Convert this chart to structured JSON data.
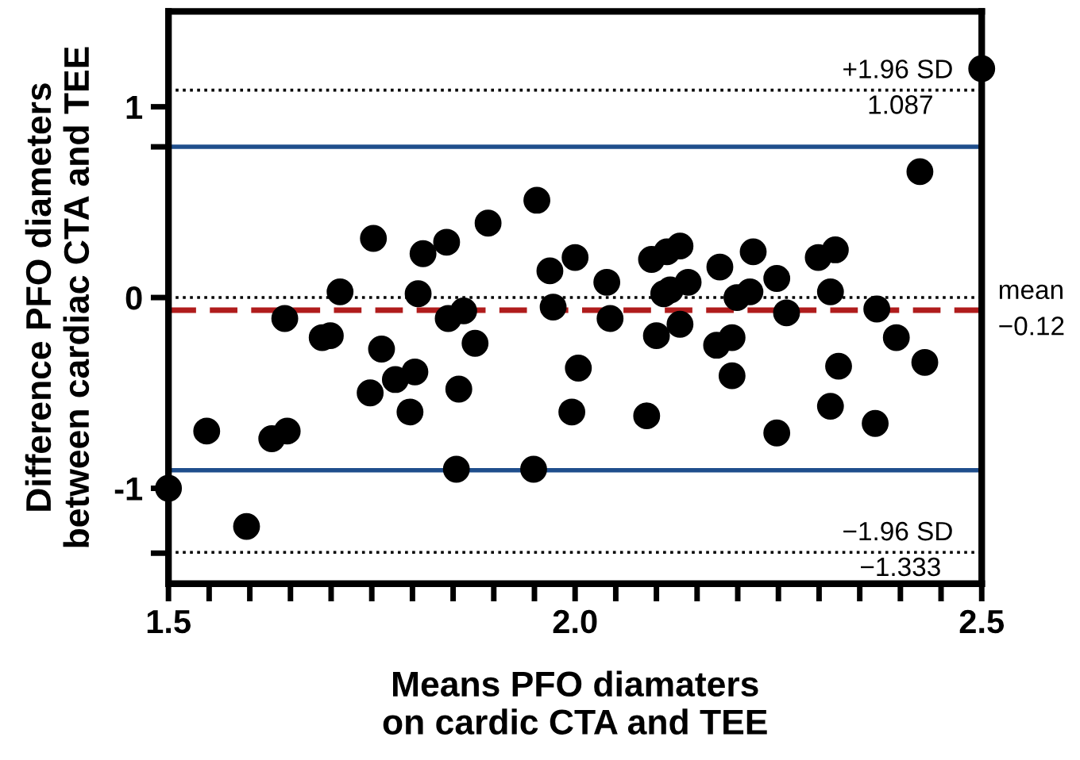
{
  "chart_data": {
    "type": "scatter",
    "xlabel": "Means PFO diamaters\non cardic CTA and TEE",
    "ylabel": "Difference PFO diameters\nbetween cardiac CTA and TEE",
    "x": [
      1.5,
      1.547,
      1.596,
      1.627,
      1.646,
      1.643,
      1.689,
      1.699,
      1.711,
      1.752,
      1.762,
      1.748,
      1.779,
      1.803,
      1.797,
      1.813,
      1.807,
      1.842,
      1.844,
      1.863,
      1.877,
      1.857,
      1.854,
      1.893,
      1.953,
      1.949,
      1.969,
      1.973,
      2.0,
      2.004,
      1.996,
      2.039,
      2.043,
      2.094,
      2.113,
      2.129,
      2.139,
      2.109,
      2.117,
      2.1,
      2.129,
      2.088,
      2.178,
      2.219,
      2.199,
      2.215,
      2.248,
      2.174,
      2.193,
      2.193,
      2.248,
      2.26,
      2.299,
      2.32,
      2.314,
      2.324,
      2.314,
      2.371,
      2.395,
      2.369,
      2.43,
      2.424,
      2.5
    ],
    "values": [
      -1.0,
      -0.7,
      -1.2,
      -0.74,
      -0.7,
      -0.11,
      -0.21,
      -0.2,
      0.03,
      0.31,
      -0.27,
      -0.5,
      -0.43,
      -0.39,
      -0.6,
      0.23,
      0.02,
      0.29,
      -0.11,
      -0.07,
      -0.24,
      -0.48,
      -0.9,
      0.39,
      0.51,
      -0.9,
      0.14,
      -0.05,
      0.21,
      -0.37,
      -0.6,
      0.08,
      -0.11,
      0.2,
      0.24,
      0.27,
      0.08,
      0.02,
      0.04,
      -0.2,
      -0.14,
      -0.62,
      0.16,
      0.24,
      0.0,
      0.03,
      0.1,
      -0.25,
      -0.21,
      -0.41,
      -0.71,
      -0.08,
      0.21,
      0.25,
      0.03,
      -0.36,
      -0.57,
      -0.06,
      -0.21,
      -0.66,
      -0.34,
      0.66,
      1.2
    ],
    "color": "#000000",
    "marker": "circle",
    "xlim": [
      1.5,
      2.5
    ],
    "ylim": [
      -1.5,
      1.5
    ],
    "xticks": [
      1.5,
      {
        "value": 1.55,
        "label": null
      },
      {
        "value": 1.6,
        "label": null
      },
      {
        "value": 1.65,
        "label": null
      },
      {
        "value": 1.7,
        "label": null
      },
      {
        "value": 1.75,
        "label": null
      },
      {
        "value": 1.8,
        "label": null
      },
      {
        "value": 1.85,
        "label": null
      },
      {
        "value": 1.9,
        "label": null
      },
      {
        "value": 1.95,
        "label": null
      },
      {
        "value": 2.0,
        "label": "2.0"
      },
      {
        "value": 2.05,
        "label": null
      },
      {
        "value": 2.1,
        "label": null
      },
      {
        "value": 2.15,
        "label": null
      },
      {
        "value": 2.2,
        "label": null
      },
      {
        "value": 2.25,
        "label": null
      },
      {
        "value": 2.3,
        "label": null
      },
      {
        "value": 2.35,
        "label": null
      },
      {
        "value": 2.4,
        "label": null
      },
      {
        "value": 2.45,
        "label": null
      },
      2.5
    ],
    "yticks": [
      -1,
      {
        "value": -1.34,
        "label": null
      },
      0,
      {
        "value": 0.79,
        "label": null
      },
      1
    ],
    "ref_lines": [
      {
        "axis": "y",
        "value": 1.087,
        "label": "+1.96 SD\n1.087",
        "color": "#000000",
        "line_style": "dotted"
      },
      {
        "axis": "y",
        "value": 0.79,
        "label": null,
        "color": "#1f4e8c",
        "line_style": "solid"
      },
      {
        "axis": "y",
        "value": 0,
        "label": null,
        "color": "#000000",
        "line_style": "dotted"
      },
      {
        "axis": "y",
        "value": -0.066,
        "label": "mean\n−0.12",
        "color": "#b01c1c",
        "line_style": "dashed"
      },
      {
        "axis": "y",
        "value": -0.905,
        "label": null,
        "color": "#1f4e8c",
        "line_style": "solid"
      },
      {
        "axis": "y",
        "value": -1.336,
        "label": "−1.96 SD\n−1.333",
        "color": "#000000",
        "line_style": "dotted"
      }
    ],
    "grid": false,
    "legend": false
  }
}
